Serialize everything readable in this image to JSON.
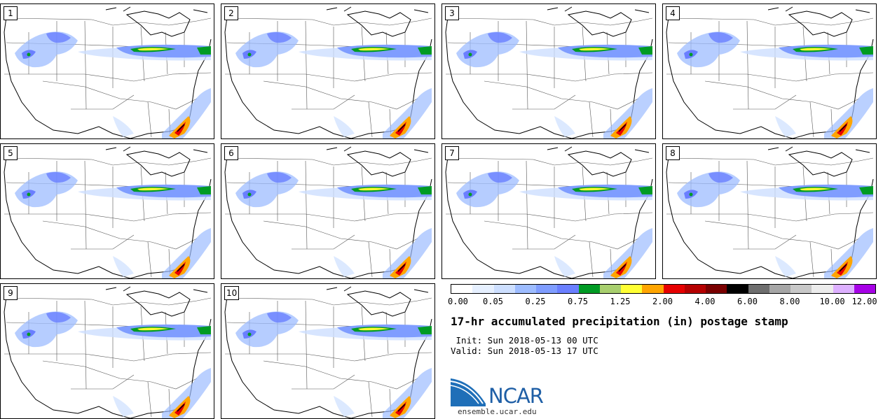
{
  "panels": [
    {
      "label": "1"
    },
    {
      "label": "2"
    },
    {
      "label": "3"
    },
    {
      "label": "4"
    },
    {
      "label": "5"
    },
    {
      "label": "6"
    },
    {
      "label": "7"
    },
    {
      "label": "8"
    },
    {
      "label": "9"
    },
    {
      "label": "10"
    }
  ],
  "colorbar": {
    "colors": [
      "#ffffff",
      "#e6f0ff",
      "#cddfff",
      "#9dbcff",
      "#7f9dff",
      "#6a7fff",
      "#009b24",
      "#a8cf6e",
      "#ffff33",
      "#ffa500",
      "#e60000",
      "#b50000",
      "#7a0000",
      "#000000",
      "#6e6e6e",
      "#a6a6a6",
      "#c8c8c8",
      "#ececec",
      "#ddb0ff",
      "#a600e6"
    ],
    "tick_labels": [
      "0.00",
      "0.05",
      "0.25",
      "0.75",
      "1.25",
      "2.00",
      "4.00",
      "6.00",
      "8.00",
      "10.00",
      "12.00"
    ]
  },
  "title": "17-hr accumulated precipitation (in) postage stamp",
  "init": " Init: Sun 2018-05-13 00 UTC",
  "valid": "Valid: Sun 2018-05-13 17 UTC",
  "logo_text": "NCAR",
  "site": "ensemble.ucar.edu"
}
